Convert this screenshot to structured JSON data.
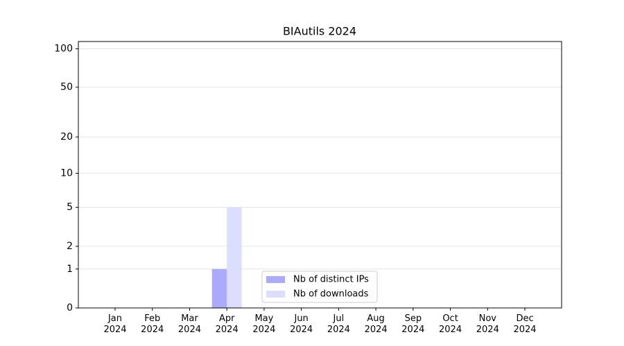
{
  "chart_data": {
    "type": "bar",
    "title": "BIAutils 2024",
    "categories": [
      "Jan\n2024",
      "Feb\n2024",
      "Mar\n2024",
      "Apr\n2024",
      "May\n2024",
      "Jun\n2024",
      "Jul\n2024",
      "Aug\n2024",
      "Sep\n2024",
      "Oct\n2024",
      "Nov\n2024",
      "Dec\n2024"
    ],
    "series": [
      {
        "name": "Nb of distinct IPs",
        "color": "#aaaaff",
        "values": [
          0,
          0,
          0,
          1,
          0,
          0,
          0,
          0,
          0,
          0,
          0,
          0
        ]
      },
      {
        "name": "Nb of downloads",
        "color": "#ddddff",
        "values": [
          0,
          0,
          0,
          5,
          0,
          0,
          0,
          0,
          0,
          0,
          0,
          0
        ]
      }
    ],
    "yscale": "log1p",
    "ylim": [
      0,
      114
    ],
    "yticks": [
      0,
      1,
      2,
      5,
      10,
      20,
      50,
      100
    ],
    "grid": true,
    "legend": "lower center"
  }
}
